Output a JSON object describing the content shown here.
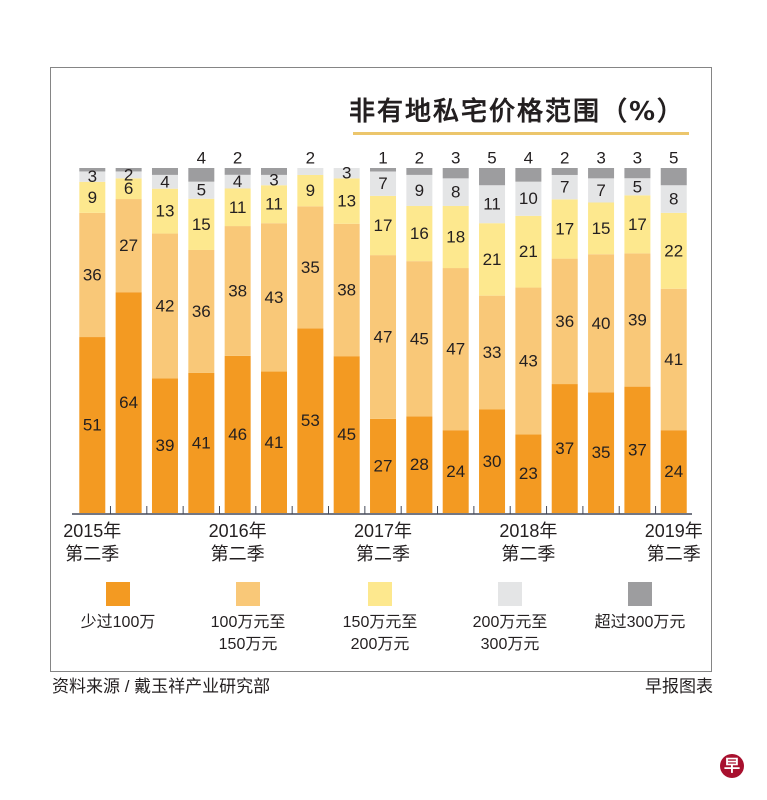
{
  "chart_data": {
    "type": "bar",
    "stacked": true,
    "title": "非有地私宅价格范围（%）",
    "xlabel": "",
    "ylabel": "",
    "ylim": [
      0,
      100
    ],
    "grid": false,
    "legend_position": "bottom",
    "x_tick_labels": [
      {
        "category_index": 0,
        "year": "2015年",
        "quarter": "第二季"
      },
      {
        "category_index": 4,
        "year": "2016年",
        "quarter": "第二季"
      },
      {
        "category_index": 8,
        "year": "2017年",
        "quarter": "第二季"
      },
      {
        "category_index": 12,
        "year": "2018年",
        "quarter": "第二季"
      },
      {
        "category_index": 16,
        "year": "2019年",
        "quarter": "第二季"
      }
    ],
    "series": [
      {
        "label_lines": [
          "少过100万"
        ],
        "color": "#f39a22",
        "values": [
          51,
          64,
          39,
          41,
          46,
          41,
          53,
          45,
          27,
          28,
          24,
          30,
          23,
          37,
          35,
          37,
          24
        ]
      },
      {
        "label_lines": [
          "100万元至",
          "150万元"
        ],
        "color": "#f9c878",
        "values": [
          36,
          27,
          42,
          36,
          38,
          43,
          35,
          38,
          47,
          45,
          47,
          33,
          43,
          36,
          40,
          39,
          41
        ]
      },
      {
        "label_lines": [
          "150万元至",
          "200万元"
        ],
        "color": "#fde88e",
        "values": [
          9,
          6,
          13,
          15,
          11,
          11,
          9,
          13,
          17,
          16,
          18,
          21,
          21,
          17,
          15,
          17,
          22
        ]
      },
      {
        "label_lines": [
          "200万元至",
          "300万元"
        ],
        "color": "#e4e5e6",
        "values": [
          3,
          2,
          4,
          5,
          4,
          3,
          2,
          3,
          7,
          9,
          8,
          11,
          10,
          7,
          7,
          5,
          8
        ]
      },
      {
        "label_lines": [
          "超过300万元"
        ],
        "color": "#9d9d9f",
        "values": [
          1,
          1,
          2,
          4,
          2,
          2,
          0,
          0,
          1,
          2,
          3,
          5,
          4,
          2,
          3,
          3,
          5
        ],
        "unlabeled_indices": [
          0,
          1,
          2,
          5
        ]
      }
    ]
  },
  "footer": {
    "source": "资料来源 / 戴玉祥产业研究部",
    "credit": "早报图表"
  },
  "logo": {
    "text": "早",
    "color": "#a8102e"
  }
}
